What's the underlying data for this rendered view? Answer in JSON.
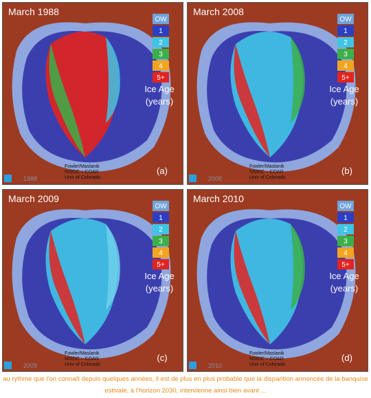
{
  "panels": [
    {
      "title": "March 1988",
      "year": "1988",
      "label": "(a)"
    },
    {
      "title": "March 2008",
      "year": "2008",
      "label": "(b)"
    },
    {
      "title": "March 2009",
      "year": "2009",
      "label": "(c)"
    },
    {
      "title": "March 2010",
      "year": "2010",
      "label": "(d)"
    }
  ],
  "legend": {
    "items": [
      {
        "label": "OW",
        "color": "#6fa3dc"
      },
      {
        "label": "1",
        "color": "#2b3fc4"
      },
      {
        "label": "2",
        "color": "#40c4e6"
      },
      {
        "label": "3",
        "color": "#3bb04a"
      },
      {
        "label": "4",
        "color": "#f2a51f"
      },
      {
        "label": "5+",
        "color": "#e3231f"
      }
    ],
    "heading": "Ice Age",
    "unit": "(years)"
  },
  "credit": [
    "Fowler/Maslanik",
    "NSIDC – COAR",
    "Univ of Colorado"
  ],
  "caption": "au rythme que l'on connaît depuis quelques années, il est de plus en plus probable que la disparition annoncée de la banquise estivale, à l'horizon 2030, intervienne ainsi bien avant ..."
}
